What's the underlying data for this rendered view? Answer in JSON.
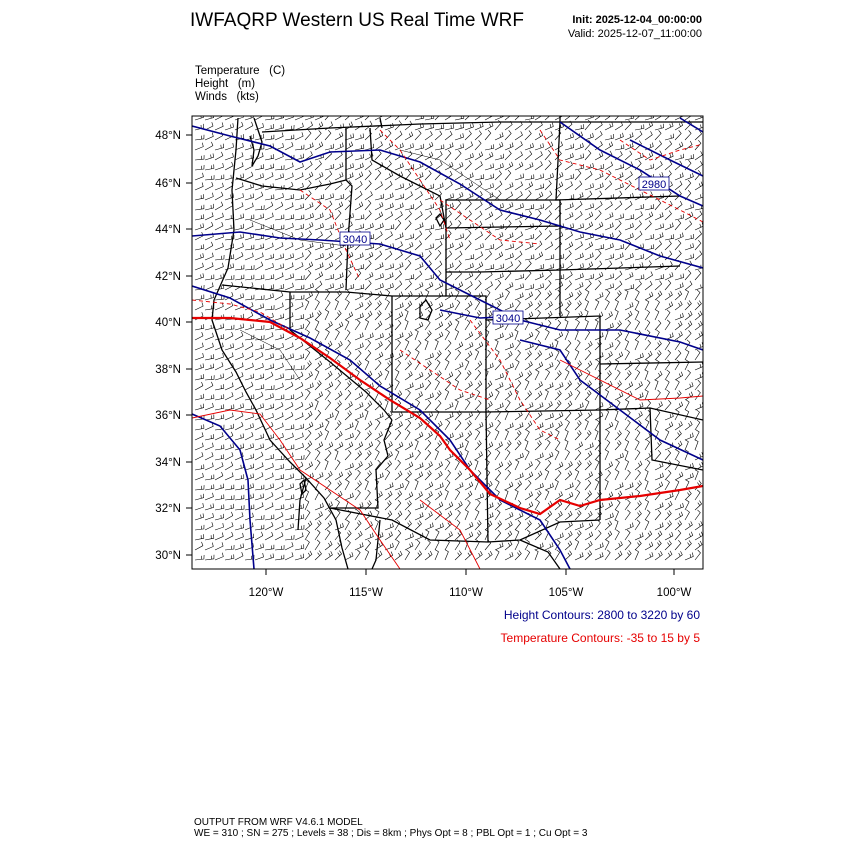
{
  "header": {
    "title": "IWFAQRP Western US Real Time WRF",
    "init": "Init: 2025-12-04_00:00:00",
    "valid": "Valid: 2025-12-07_11:00:00"
  },
  "fields": {
    "temperature": "Temperature   (C)",
    "height": "Height   (m)",
    "winds": "Winds   (kts)"
  },
  "axes": {
    "lat_labels": [
      "48°N",
      "46°N",
      "44°N",
      "42°N",
      "40°N",
      "38°N",
      "36°N",
      "34°N",
      "32°N",
      "30°N"
    ],
    "lon_labels": [
      "120°W",
      "115°W",
      "110°W",
      "105°W",
      "100°W"
    ]
  },
  "contour_labels": {
    "height_2980": "2980",
    "height_3040_west": "3040",
    "height_3040_central": "3040"
  },
  "legend": {
    "height": "Height Contours: 2800 to 3220 by 60",
    "temperature": "Temperature Contours: -35 to 15 by 5"
  },
  "footer": {
    "line1": "OUTPUT FROM WRF V4.6.1 MODEL",
    "line2": "WE = 310 ; SN = 275 ; Levels = 38 ; Dis = 8km ; Phys Opt = 8 ; PBL Opt = 1 ; Cu Opt = 3"
  },
  "colors": {
    "height_contour": "#00008b",
    "temperature_contour": "#e60000",
    "boundary": "#000000"
  }
}
